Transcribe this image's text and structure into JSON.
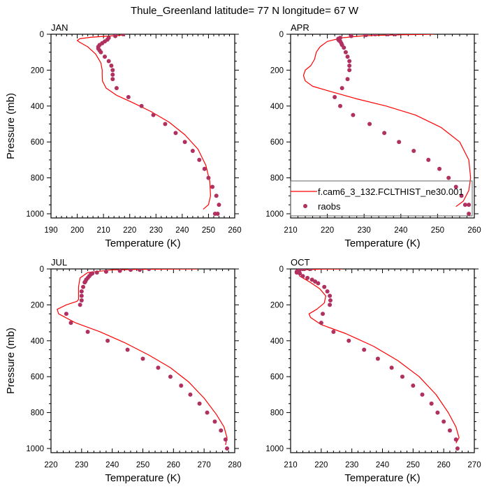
{
  "chart_data": {
    "type": "line",
    "title": "Thule_Greenland  latitude= 77 N longitude= 67 W",
    "legend": {
      "placement": "bottom-right",
      "panel": "APR",
      "entries": [
        {
          "label": "f.cam6_3_132.FCLTHIST_ne30.001",
          "kind": "line",
          "color": "#ff0000"
        },
        {
          "label": "raobs",
          "kind": "marker",
          "color": "#b03060"
        }
      ]
    },
    "colors": {
      "model": "#ff0000",
      "obs": "#b03060"
    },
    "panels": [
      {
        "name": "JAN",
        "xlabel": "Temperature (K)",
        "ylabel": "Pressure (mb)",
        "xlim": [
          190,
          260
        ],
        "ylim": [
          1000,
          0
        ],
        "xticks": [
          190,
          200,
          210,
          220,
          230,
          240,
          250,
          260
        ],
        "yticks": [
          0,
          200,
          400,
          600,
          800,
          1000
        ],
        "model": {
          "temperature": [
            217,
            214,
            210,
            205,
            201,
            200,
            201,
            204,
            207,
            209,
            209.5,
            209.5,
            209.6,
            211,
            215,
            221,
            228,
            235,
            241,
            246,
            249,
            250.5,
            250.8,
            250,
            248
          ],
          "pressure": [
            5,
            8,
            12,
            17,
            25,
            35,
            45,
            70,
            110,
            160,
            200,
            230,
            260,
            300,
            340,
            380,
            430,
            490,
            560,
            640,
            730,
            820,
            900,
            950,
            975
          ]
        },
        "raobs": {
          "temperature": [
            217.5,
            214.5,
            212,
            211.5,
            210.5,
            209.5,
            208.5,
            208,
            208,
            208.5,
            209,
            210.5,
            212,
            213,
            213.5,
            213.5,
            213.5,
            215,
            219.5,
            224.5,
            229,
            233.5,
            237.5,
            241,
            244,
            246.5,
            248.5,
            250,
            251.5,
            253,
            254,
            253.5,
            252.5
          ],
          "pressure": [
            0,
            10,
            20,
            30,
            40,
            50,
            60,
            70,
            80,
            90,
            100,
            125,
            150,
            175,
            200,
            225,
            250,
            300,
            350,
            400,
            450,
            500,
            550,
            600,
            650,
            700,
            750,
            800,
            850,
            900,
            950,
            1000,
            1000
          ]
        }
      },
      {
        "name": "APR",
        "xlabel": "Temperature (K)",
        "ylabel": "",
        "xlim": [
          210,
          260
        ],
        "ylim": [
          1000,
          0
        ],
        "xticks": [
          210,
          220,
          230,
          240,
          250,
          260
        ],
        "yticks": [
          0,
          200,
          400,
          600,
          800,
          1000
        ],
        "model": {
          "temperature": [
            249,
            240,
            230,
            224,
            220,
            218,
            217,
            216.5,
            215.5,
            214,
            213.5,
            214,
            216,
            221,
            228,
            236,
            244,
            251,
            256,
            258.5,
            259,
            258.5,
            257,
            255
          ],
          "pressure": [
            0,
            3,
            8,
            20,
            40,
            70,
            100,
            140,
            175,
            200,
            230,
            260,
            290,
            320,
            360,
            400,
            450,
            520,
            600,
            700,
            800,
            870,
            930,
            960
          ]
        },
        "raobs": {
          "temperature": [
            238.5,
            236.5,
            233,
            230.5,
            226.5,
            223.5,
            223,
            223,
            223.2,
            223.5,
            223.8,
            224,
            224.5,
            225,
            225.5,
            226,
            226,
            226,
            225.5,
            224,
            222,
            223.5,
            227,
            231.5,
            235.5,
            239.5,
            243.5,
            247.5,
            250.5,
            253,
            255,
            256.5,
            257.5,
            258.5,
            258.5
          ],
          "pressure": [
            0,
            0,
            0,
            5,
            10,
            20,
            25,
            30,
            35,
            40,
            50,
            60,
            75,
            100,
            125,
            150,
            175,
            200,
            250,
            300,
            350,
            400,
            450,
            500,
            550,
            600,
            650,
            700,
            750,
            800,
            850,
            900,
            950,
            950,
            1000
          ]
        }
      },
      {
        "name": "JUL",
        "xlabel": "Temperature (K)",
        "ylabel": "Pressure (mb)",
        "xlim": [
          220,
          280
        ],
        "ylim": [
          1000,
          0
        ],
        "xticks": [
          220,
          230,
          240,
          250,
          260,
          270,
          280
        ],
        "yticks": [
          0,
          200,
          400,
          600,
          800,
          1000
        ],
        "model": {
          "temperature": [
            268,
            250,
            240,
            232,
            229.5,
            229,
            229,
            229,
            228.5,
            225,
            222,
            222.5,
            228,
            236,
            244,
            252,
            259,
            265,
            270,
            274,
            276.5,
            277.5,
            277
          ],
          "pressure": [
            0,
            2,
            5,
            20,
            50,
            100,
            150,
            170,
            180,
            200,
            225,
            250,
            300,
            350,
            410,
            480,
            550,
            630,
            720,
            810,
            880,
            940,
            980
          ]
        },
        "raobs": {
          "temperature": [
            252,
            249,
            246,
            242.5,
            238,
            235,
            233.5,
            233,
            232.5,
            232,
            231.5,
            231.2,
            231,
            230.5,
            230,
            230,
            230,
            229.5,
            225,
            226.5,
            232,
            238.5,
            245,
            250,
            255,
            259,
            262.5,
            265.5,
            268.5,
            271,
            273.5,
            275.5,
            277,
            277.5
          ],
          "pressure": [
            0,
            5,
            5,
            10,
            15,
            20,
            25,
            30,
            40,
            50,
            60,
            70,
            75,
            100,
            125,
            150,
            175,
            200,
            250,
            300,
            350,
            400,
            450,
            500,
            550,
            600,
            650,
            700,
            750,
            800,
            850,
            900,
            950,
            1000
          ]
        }
      },
      {
        "name": "OCT",
        "xlabel": "Temperature (K)",
        "ylabel": "",
        "xlim": [
          210,
          270
        ],
        "ylim": [
          1000,
          0
        ],
        "xticks": [
          210,
          220,
          230,
          240,
          250,
          260,
          270
        ],
        "yticks": [
          0,
          200,
          400,
          600,
          800,
          1000
        ],
        "model": {
          "temperature": [
            227,
            220,
            214,
            212.5,
            213,
            216,
            219.5,
            221.5,
            221,
            218.5,
            216,
            216.5,
            220,
            228,
            237,
            245,
            252,
            257.5,
            261.5,
            264,
            265,
            264
          ],
          "pressure": [
            0,
            1,
            5,
            15,
            40,
            70,
            110,
            150,
            190,
            225,
            250,
            270,
            310,
            360,
            430,
            510,
            600,
            700,
            800,
            880,
            940,
            970
          ]
        },
        "raobs": {
          "temperature": [
            216.5,
            214.5,
            213,
            212.5,
            212,
            212,
            213,
            214,
            215.5,
            217,
            218,
            219,
            221,
            222,
            222.8,
            223,
            222.8,
            220.5,
            220,
            224,
            229,
            234,
            238.5,
            243,
            246.5,
            250,
            253,
            256,
            258,
            260,
            262,
            264,
            264.5
          ],
          "pressure": [
            0,
            0,
            5,
            10,
            15,
            20,
            25,
            40,
            50,
            60,
            70,
            80,
            100,
            125,
            150,
            175,
            200,
            250,
            300,
            350,
            400,
            450,
            500,
            550,
            600,
            650,
            700,
            750,
            800,
            850,
            900,
            950,
            1000
          ]
        }
      }
    ]
  }
}
